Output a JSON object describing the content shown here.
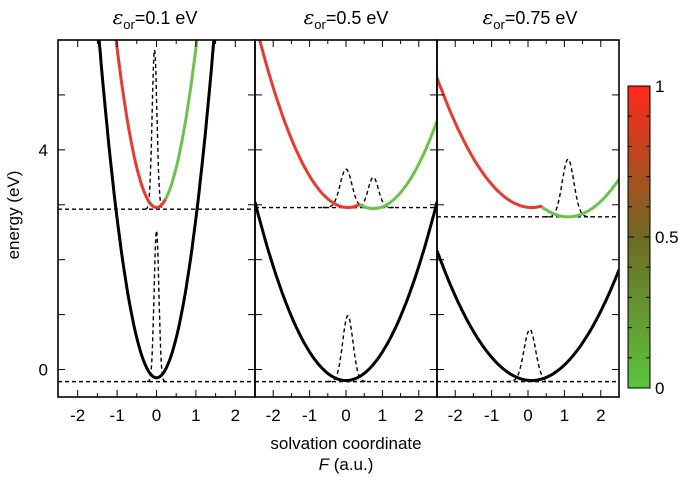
{
  "chart_data": {
    "type": "line",
    "ylabel": "energy (eV)",
    "xlabel_line1": "solvation coordinate",
    "xlabel_line2_symbol": "F",
    "xlabel_line2_unit": " (a.u.)",
    "xlim": [
      -2.5,
      2.5
    ],
    "ylim": [
      -0.5,
      6.0
    ],
    "x_ticks": [
      -2,
      -1,
      0,
      1,
      2
    ],
    "y_tick_labels": [
      0,
      4
    ],
    "y_ticks_minor": [
      0,
      1,
      2,
      3,
      4,
      5
    ],
    "colorbar": {
      "tick_labels": [
        "1",
        "0.5",
        "0"
      ],
      "tick_values": [
        1,
        0.5,
        0
      ],
      "colors": {
        "high": "#ff2a1a",
        "mid": "#6e6a24",
        "low": "#59c43e"
      }
    },
    "curve_colors": {
      "ground": "#000000",
      "excited_red": "#e83a2d",
      "excited_green": "#6cc24a",
      "dashed": "#000000"
    },
    "panels": [
      {
        "title_symbol": "ε",
        "title_sub": "or",
        "title_value": "=0.1 eV",
        "ground": {
          "center": 0.0,
          "min": -0.15,
          "curvature": 2.9
        },
        "excited": {
          "center": 0.0,
          "min": 2.95,
          "curvature": 2.9,
          "switch_x": 0.25
        },
        "baseline_ground": -0.22,
        "baseline_excited": 2.92,
        "peaks_ground": [
          {
            "center": 0.0,
            "height": 2.75,
            "width": 0.06
          }
        ],
        "peaks_excited": [
          {
            "center": -0.05,
            "height": 2.9,
            "width": 0.06
          }
        ]
      },
      {
        "title_symbol": "ε",
        "title_sub": "or",
        "title_value": "=0.5 eV",
        "ground": {
          "center": 0.0,
          "min": -0.2,
          "curvature": 0.52
        },
        "excited": {
          "center_left": 0.05,
          "center_right": 0.75,
          "min_left": 2.95,
          "min_right": 2.93,
          "curvature": 0.52,
          "switch_x": 0.4
        },
        "baseline_ground": -0.22,
        "baseline_excited": 2.95,
        "peaks_ground": [
          {
            "center": 0.05,
            "height": 1.2,
            "width": 0.14
          }
        ],
        "peaks_excited": [
          {
            "center": 0.0,
            "height": 0.7,
            "width": 0.16
          },
          {
            "center": 0.75,
            "height": 0.55,
            "width": 0.14
          }
        ]
      },
      {
        "title_symbol": "ε",
        "title_sub": "or",
        "title_value": "=0.75 eV",
        "ground": {
          "center": 0.1,
          "min": -0.2,
          "curvature": 0.35
        },
        "excited": {
          "center_left": 0.1,
          "center_right": 1.1,
          "min_left": 2.95,
          "min_right": 2.78,
          "curvature": 0.35,
          "switch_x": 0.4
        },
        "baseline_ground": -0.22,
        "baseline_excited": 2.78,
        "peaks_ground": [
          {
            "center": 0.05,
            "height": 0.95,
            "width": 0.16
          }
        ],
        "peaks_excited": [
          {
            "center": 1.1,
            "height": 1.05,
            "width": 0.16
          }
        ]
      }
    ]
  }
}
